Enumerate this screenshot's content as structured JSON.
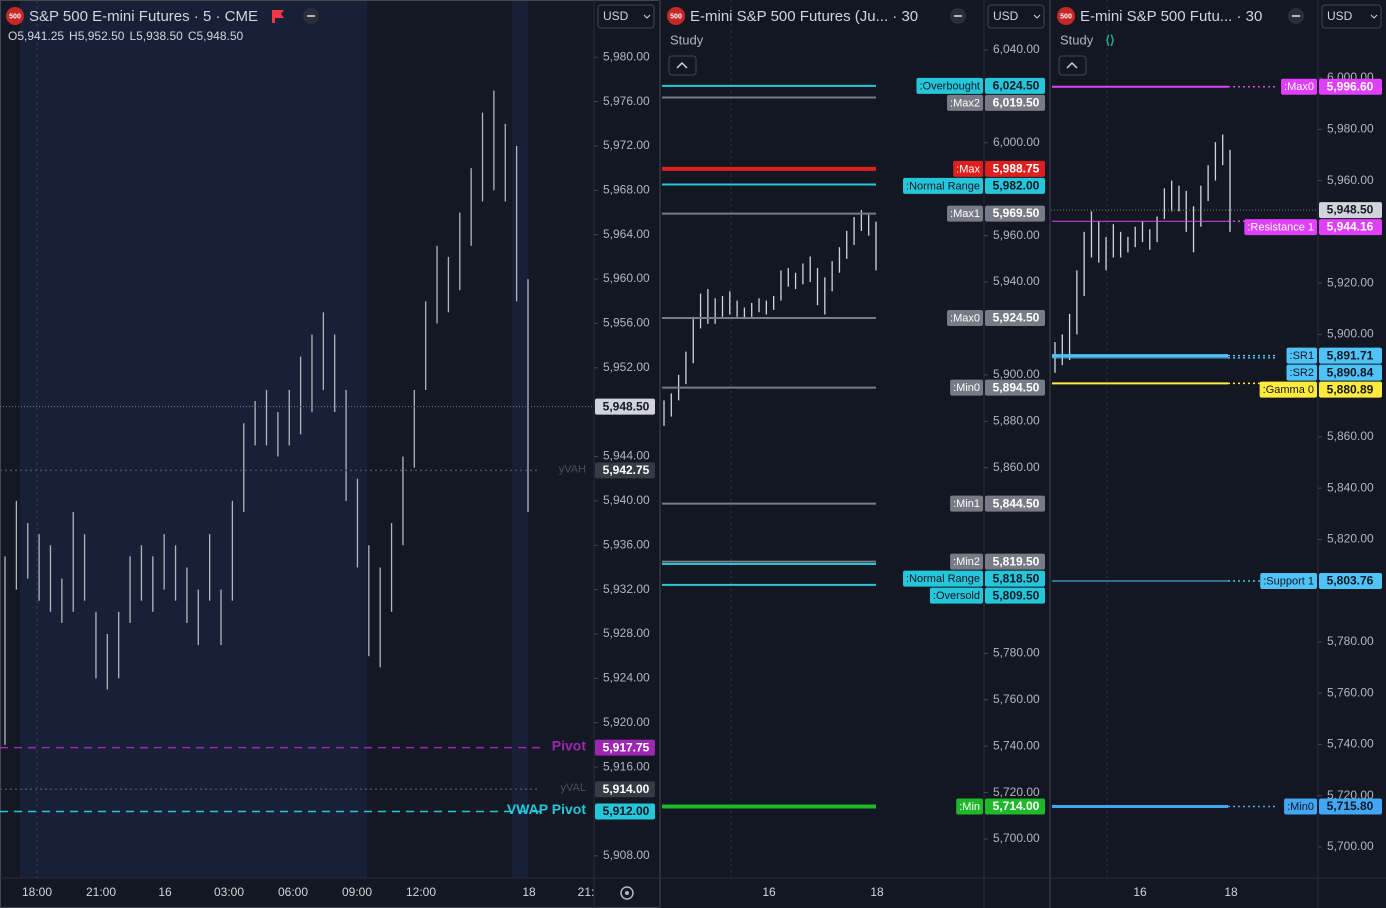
{
  "chart_data": [
    {
      "type": "ohlc",
      "badge": "500",
      "title": "S&P 500 E-mini Futures · 5 · CME",
      "currency": "USD",
      "ohlc_legend": [
        "O5,941.25",
        "H5,952.50",
        "L5,938.50",
        "C5,948.50"
      ],
      "ylim": [
        5906,
        5984.8
      ],
      "yticks": [
        {
          "value": 5980,
          "label": "5,980.00"
        },
        {
          "value": 5976,
          "label": "5,976.00"
        },
        {
          "value": 5972,
          "label": "5,972.00"
        },
        {
          "value": 5968,
          "label": "5,968.00"
        },
        {
          "value": 5964,
          "label": "5,964.00"
        },
        {
          "value": 5960,
          "label": "5,960.00"
        },
        {
          "value": 5956,
          "label": "5,956.00"
        },
        {
          "value": 5952,
          "label": "5,952.00"
        },
        {
          "value": 5944,
          "label": "5,944.00"
        },
        {
          "value": 5940,
          "label": "5,940.00"
        },
        {
          "value": 5936,
          "label": "5,936.00"
        },
        {
          "value": 5932,
          "label": "5,932.00"
        },
        {
          "value": 5928,
          "label": "5,928.00"
        },
        {
          "value": 5924,
          "label": "5,924.00"
        },
        {
          "value": 5920,
          "label": "5,920.00"
        },
        {
          "value": 5916,
          "label": "5,916.00"
        },
        {
          "value": 5908,
          "label": "5,908.00"
        }
      ],
      "xtick_labels": [
        "18:00",
        "21:00",
        "16",
        "03:00",
        "06:00",
        "09:00",
        "12:00",
        "18",
        "21:"
      ],
      "bar_color": "#b2b5be",
      "label_style": "text",
      "highs": [
        5935,
        5940,
        5938,
        5937,
        5936,
        5933,
        5939,
        5937,
        5930,
        5928,
        5930,
        5935,
        5936,
        5935,
        5937,
        5936,
        5934,
        5932,
        5937,
        5932,
        5940,
        5947,
        5949,
        5950,
        5948,
        5950,
        5953,
        5955,
        5957,
        5955,
        5950,
        5942,
        5936,
        5934,
        5938,
        5944,
        5950,
        5958,
        5963,
        5962,
        5966,
        5970,
        5975,
        5977,
        5974,
        5972,
        5960
      ],
      "lows": [
        5918,
        5932,
        5933,
        5931,
        5930,
        5929,
        5930,
        5931,
        5924,
        5923,
        5924,
        5929,
        5931,
        5930,
        5932,
        5931,
        5929,
        5927,
        5931,
        5927,
        5931,
        5939,
        5945,
        5945,
        5944,
        5945,
        5946,
        5948,
        5950,
        5948,
        5940,
        5934,
        5926,
        5925,
        5930,
        5936,
        5943,
        5950,
        5956,
        5957,
        5959,
        5963,
        5967,
        5968,
        5967,
        5958,
        5939
      ],
      "last_price": {
        "value": 5948.5,
        "label": "5,948.50",
        "color": "#d1d4dc"
      },
      "levels": [
        {
          "name": "Pivot",
          "value": 5917.75,
          "value_label": "5,917.75",
          "color": "#9c27b0",
          "box_color": "#9c27b0",
          "style": "dashed",
          "line_width": 1.5
        },
        {
          "name": "yVAH",
          "value": 5942.75,
          "value_label": "5,942.75",
          "color": "#4a4e5a",
          "box_color": "#363a45",
          "style": "dotted",
          "line_width": 1.5
        },
        {
          "name": "yVAL",
          "value": 5914.0,
          "value_label": "5,914.00",
          "color": "#4a4e5a",
          "box_color": "#363a45",
          "style": "dotted",
          "line_width": 1.5
        },
        {
          "name": "VWAP Pivot",
          "value": 5912.0,
          "value_label": "5,912.00",
          "color": "#26c6da",
          "box_color": "#26c6da",
          "style": "dashed",
          "line_width": 1.5
        }
      ]
    },
    {
      "type": "ohlc",
      "badge": "500",
      "title": "E-mini S&P 500 Futures (Ju... · 30",
      "currency": "USD",
      "study": "Study",
      "ylim": [
        5683.2,
        6059.8
      ],
      "yticks": [
        {
          "value": 6040,
          "label": "6,040.00"
        },
        {
          "value": 6000,
          "label": "6,000.00"
        },
        {
          "value": 5960,
          "label": "5,960.00"
        },
        {
          "value": 5940,
          "label": "5,940.00"
        },
        {
          "value": 5900,
          "label": "5,900.00"
        },
        {
          "value": 5880,
          "label": "5,880.00"
        },
        {
          "value": 5860,
          "label": "5,860.00"
        },
        {
          "value": 5780,
          "label": "5,780.00"
        },
        {
          "value": 5760,
          "label": "5,760.00"
        },
        {
          "value": 5740,
          "label": "5,740.00"
        },
        {
          "value": 5720,
          "label": "5,720.00"
        },
        {
          "value": 5700,
          "label": "5,700.00"
        }
      ],
      "xtick_labels": [
        "16",
        "18"
      ],
      "bar_color": "#d1d4dc",
      "label_style": "box",
      "highs": [
        5889,
        5892,
        5900,
        5910,
        5925,
        5935,
        5937,
        5933,
        5934,
        5936,
        5932,
        5929,
        5931,
        5933,
        5932,
        5934,
        5945,
        5946,
        5944,
        5948,
        5951,
        5946,
        5942,
        5949,
        5955,
        5962,
        5968,
        5971,
        5969,
        5966
      ],
      "lows": [
        5878,
        5882,
        5889,
        5896,
        5905,
        5920,
        5922,
        5922,
        5925,
        5926,
        5925,
        5924,
        5925,
        5927,
        5926,
        5928,
        5932,
        5938,
        5937,
        5939,
        5940,
        5930,
        5926,
        5936,
        5944,
        5950,
        5956,
        5962,
        5960,
        5945
      ],
      "levels": [
        {
          "name": ":Overbought",
          "value": 6024.5,
          "value_label": "6,024.50",
          "color": "#26c6da",
          "line_width": 2
        },
        {
          "name": ":Max2",
          "value": 6019.5,
          "value_label": "6,019.50",
          "color": "#787b86",
          "line_width": 2
        },
        {
          "name": ":Max",
          "value": 5988.75,
          "value_label": "5,988.75",
          "color": "#e01e1e",
          "line_width": 4
        },
        {
          "name": ":Normal Range",
          "value": 5982.0,
          "value_label": "5,982.00",
          "color": "#26c6da",
          "line_width": 2
        },
        {
          "name": ":Max1",
          "value": 5969.5,
          "value_label": "5,969.50",
          "color": "#787b86",
          "line_width": 2
        },
        {
          "name": ":Max0",
          "value": 5924.5,
          "value_label": "5,924.50",
          "color": "#787b86",
          "line_width": 2
        },
        {
          "name": ":Min0",
          "value": 5894.5,
          "value_label": "5,894.50",
          "color": "#787b86",
          "line_width": 2
        },
        {
          "name": ":Min1",
          "value": 5844.5,
          "value_label": "5,844.50",
          "color": "#787b86",
          "line_width": 2
        },
        {
          "name": ":Min2",
          "value": 5819.5,
          "value_label": "5,819.50",
          "color": "#787b86",
          "line_width": 2
        },
        {
          "name": ":Normal Range",
          "value": 5818.5,
          "value_label": "5,818.50",
          "color": "#26c6da",
          "line_width": 2
        },
        {
          "name": ":Oversold",
          "value": 5809.5,
          "value_label": "5,809.50",
          "color": "#26c6da",
          "line_width": 2
        },
        {
          "name": ":Min",
          "value": 5714.0,
          "value_label": "5,714.00",
          "color": "#1fb82b",
          "line_width": 4
        }
      ]
    },
    {
      "type": "ohlc",
      "badge": "500",
      "title": "E-mini S&P 500 Futu... · 30",
      "currency": "USD",
      "study": "Study",
      "ylim": [
        5687.9,
        6028.9
      ],
      "yticks": [
        {
          "value": 6000,
          "label": "6,000.00"
        },
        {
          "value": 5980,
          "label": "5,980.00"
        },
        {
          "value": 5960,
          "label": "5,960.00"
        },
        {
          "value": 5920,
          "label": "5,920.00"
        },
        {
          "value": 5900,
          "label": "5,900.00"
        },
        {
          "value": 5860,
          "label": "5,860.00"
        },
        {
          "value": 5840,
          "label": "5,840.00"
        },
        {
          "value": 5820,
          "label": "5,820.00"
        },
        {
          "value": 5780,
          "label": "5,780.00"
        },
        {
          "value": 5760,
          "label": "5,760.00"
        },
        {
          "value": 5740,
          "label": "5,740.00"
        },
        {
          "value": 5720,
          "label": "5,720.00"
        },
        {
          "value": 5700,
          "label": "5,700.00"
        }
      ],
      "xtick_labels": [
        "16",
        "18"
      ],
      "bar_color": "#d1d4dc",
      "label_style": "box",
      "highs": [
        5897,
        5900,
        5908,
        5925,
        5940,
        5948,
        5944,
        5938,
        5943,
        5940,
        5938,
        5942,
        5944,
        5941,
        5946,
        5957,
        5960,
        5958,
        5956,
        5950,
        5958,
        5966,
        5975,
        5978,
        5972
      ],
      "lows": [
        5885,
        5888,
        5890,
        5900,
        5915,
        5930,
        5928,
        5925,
        5930,
        5930,
        5932,
        5934,
        5936,
        5933,
        5936,
        5945,
        5948,
        5948,
        5940,
        5932,
        5942,
        5952,
        5960,
        5966,
        5940
      ],
      "last_price": {
        "value": 5948.5,
        "label": "5,948.50",
        "color": "#d1d4dc"
      },
      "levels": [
        {
          "name": ":Max0",
          "value": 5996.6,
          "value_label": "5,996.60",
          "color": "#e040fb",
          "line_width": 2
        },
        {
          "name": ":Resistance 1",
          "value": 5944.16,
          "value_label": "5,944.16",
          "color": "#e040fb",
          "line_width": 1
        },
        {
          "name": ":SR1",
          "value": 5891.71,
          "value_label": "5,891.71",
          "color": "#4fc3f7",
          "line_width": 3
        },
        {
          "name": ":SR2",
          "value": 5890.84,
          "value_label": "5,890.84",
          "color": "#4fc3f7",
          "line_width": 1
        },
        {
          "name": ":Gamma 0",
          "value": 5880.89,
          "value_label": "5,880.89",
          "color": "#ffeb3b",
          "line_width": 2
        },
        {
          "name": ":Support 1",
          "value": 5803.76,
          "value_label": "5,803.76",
          "color": "#4fc3f7",
          "line_width": 1
        },
        {
          "name": ":Min0",
          "value": 5715.8,
          "value_label": "5,715.80",
          "color": "#42a5f5",
          "line_width": 3
        }
      ]
    }
  ]
}
